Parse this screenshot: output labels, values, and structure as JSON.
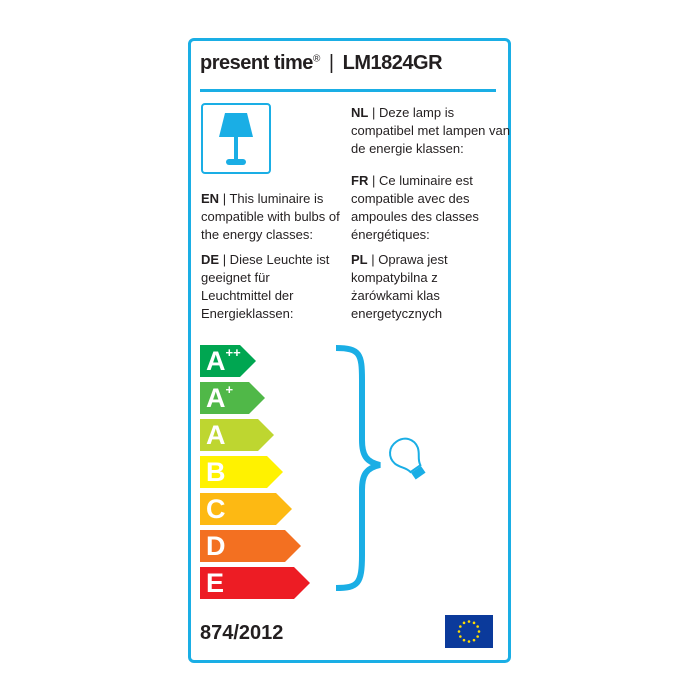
{
  "brand": "present time",
  "registered_mark": "®",
  "separator": "|",
  "model": "LM1824GR",
  "accent_color": "#1aaee5",
  "texts": {
    "nl": {
      "code": "NL",
      "body": "| Deze lamp is compatibel met lampen van de energie klassen:"
    },
    "en": {
      "code": "EN",
      "body": "| This luminaire is compatible with bulbs of the energy classes:"
    },
    "fr": {
      "code": "FR",
      "body": "| Ce luminaire est compatible avec des ampoules des classes énergétiques:"
    },
    "de": {
      "code": "DE",
      "body": "| Diese Leuchte ist geeignet für Leuchtmittel der Energieklassen:"
    },
    "pl": {
      "code": "PL",
      "body": "| Oprawa jest kompatybilna z żarówkami klas energetycznych"
    }
  },
  "classes": [
    {
      "letter": "A",
      "sup": "++",
      "color": "#00a651"
    },
    {
      "letter": "A",
      "sup": "+",
      "color": "#50b848"
    },
    {
      "letter": "A",
      "sup": "",
      "color": "#bed630"
    },
    {
      "letter": "B",
      "sup": "",
      "color": "#fff200"
    },
    {
      "letter": "C",
      "sup": "",
      "color": "#fdb913"
    },
    {
      "letter": "D",
      "sup": "",
      "color": "#f37021"
    },
    {
      "letter": "E",
      "sup": "",
      "color": "#ed1c24"
    }
  ],
  "icons": {
    "lamp": "table-lamp-icon",
    "bulb": "light-bulb-icon",
    "flag": "eu-flag-icon"
  },
  "regulation": "874/2012"
}
